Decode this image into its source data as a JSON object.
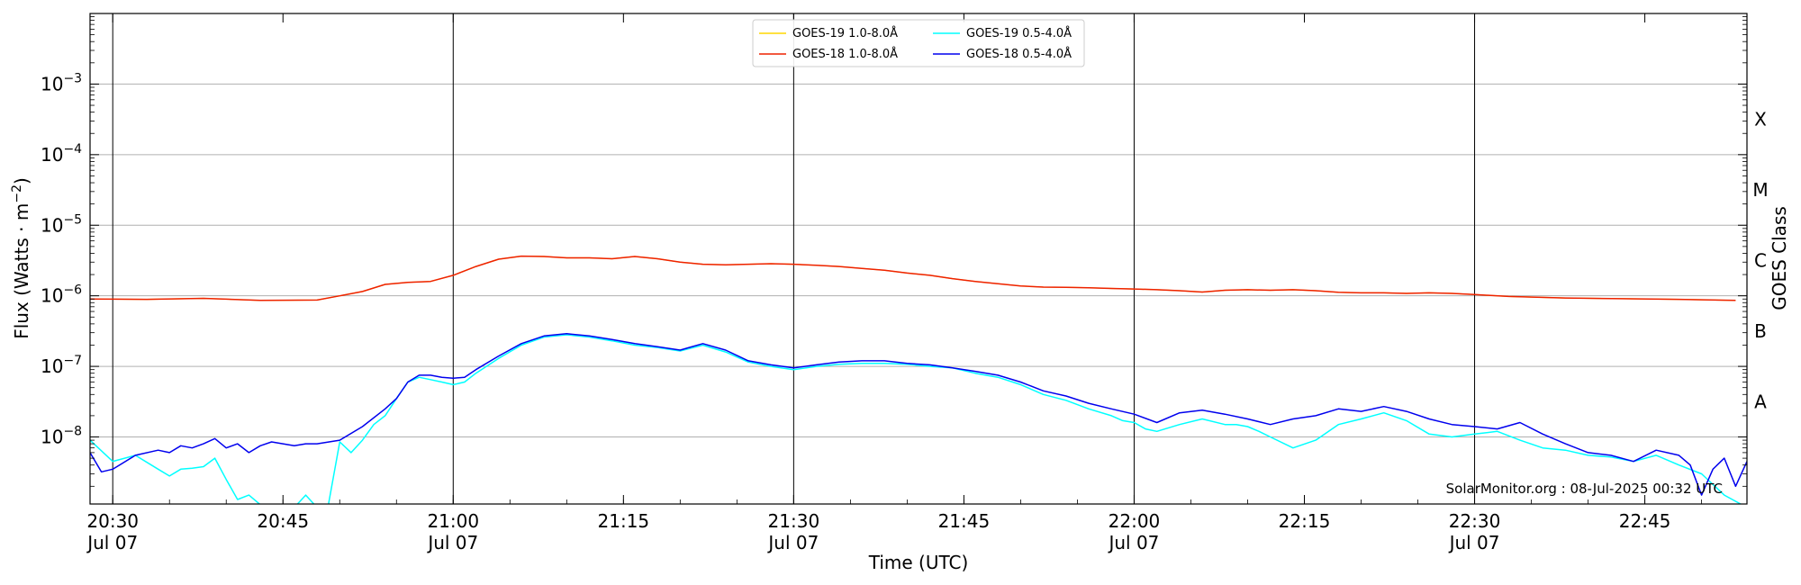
{
  "chart_data": {
    "type": "line",
    "xlabel": "Time (UTC)",
    "ylabel": "Flux (Watts · m",
    "ylabel_sup": "−2",
    "ylabel_close": ")",
    "right_label": "GOES Class",
    "ylim_log10": [
      -8.95,
      -2.0
    ],
    "x_range_min": [
      0,
      146
    ],
    "yticks": [
      {
        "exp": -3,
        "base": "10",
        "sup": "−3"
      },
      {
        "exp": -4,
        "base": "10",
        "sup": "−4"
      },
      {
        "exp": -5,
        "base": "10",
        "sup": "−5"
      },
      {
        "exp": -6,
        "base": "10",
        "sup": "−6"
      },
      {
        "exp": -7,
        "base": "10",
        "sup": "−7"
      },
      {
        "exp": -8,
        "base": "10",
        "sup": "−8"
      }
    ],
    "xticks": [
      {
        "min": 2,
        "label": "20:30",
        "sub": "Jul 07"
      },
      {
        "min": 17,
        "label": "20:45",
        "sub": ""
      },
      {
        "min": 32,
        "label": "21:00",
        "sub": "Jul 07"
      },
      {
        "min": 47,
        "label": "21:15",
        "sub": ""
      },
      {
        "min": 62,
        "label": "21:30",
        "sub": "Jul 07"
      },
      {
        "min": 77,
        "label": "21:45",
        "sub": ""
      },
      {
        "min": 92,
        "label": "22:00",
        "sub": "Jul 07"
      },
      {
        "min": 107,
        "label": "22:15",
        "sub": ""
      },
      {
        "min": 122,
        "label": "22:30",
        "sub": "Jul 07"
      },
      {
        "min": 137,
        "label": "22:45",
        "sub": ""
      }
    ],
    "day_lines_min": [
      2,
      32,
      62,
      92,
      122
    ],
    "goes_classes": [
      {
        "label": "X",
        "exp": -3.5
      },
      {
        "label": "M",
        "exp": -4.5
      },
      {
        "label": "C",
        "exp": -5.5
      },
      {
        "label": "B",
        "exp": -6.5
      },
      {
        "label": "A",
        "exp": -7.5
      }
    ],
    "series": [
      {
        "name": "GOES-19 1.0-8.0Å",
        "color": "#ffd700",
        "width": 1.2,
        "x": [
          0,
          5,
          10,
          15,
          20,
          22,
          24,
          26,
          28,
          30,
          32,
          34,
          36,
          38,
          40,
          42,
          44,
          46,
          48,
          50,
          52,
          54,
          56,
          58,
          60,
          62,
          64,
          66,
          68,
          70,
          72,
          74,
          76,
          78,
          80,
          82,
          84,
          86,
          88,
          90,
          92,
          94,
          96,
          98,
          100,
          102,
          104,
          106,
          108,
          110,
          112,
          114,
          116,
          118,
          120,
          122,
          125,
          130,
          135,
          140,
          145
        ],
        "y": [
          9e-07,
          8.9e-07,
          9.2e-07,
          8.6e-07,
          8.7e-07,
          1e-06,
          1.15e-06,
          1.45e-06,
          1.55e-06,
          1.6e-06,
          1.95e-06,
          2.6e-06,
          3.3e-06,
          3.65e-06,
          3.6e-06,
          3.45e-06,
          3.45e-06,
          3.35e-06,
          3.6e-06,
          3.35e-06,
          3e-06,
          2.8e-06,
          2.75e-06,
          2.8e-06,
          2.85e-06,
          2.8e-06,
          2.7e-06,
          2.6e-06,
          2.45e-06,
          2.3e-06,
          2.1e-06,
          1.95e-06,
          1.75e-06,
          1.6e-06,
          1.48e-06,
          1.38e-06,
          1.33e-06,
          1.32e-06,
          1.3e-06,
          1.27e-06,
          1.25e-06,
          1.22e-06,
          1.18e-06,
          1.13e-06,
          1.2e-06,
          1.22e-06,
          1.2e-06,
          1.22e-06,
          1.18e-06,
          1.12e-06,
          1.1e-06,
          1.1e-06,
          1.08e-06,
          1.1e-06,
          1.08e-06,
          1.04e-06,
          9.8e-07,
          9.3e-07,
          9.1e-07,
          8.9e-07,
          8.6e-07
        ]
      },
      {
        "name": "GOES-18 1.0-8.0Å",
        "color": "#ee2200",
        "width": 1.5,
        "x": [
          0,
          5,
          10,
          15,
          20,
          22,
          24,
          26,
          28,
          30,
          32,
          34,
          36,
          38,
          40,
          42,
          44,
          46,
          48,
          50,
          52,
          54,
          56,
          58,
          60,
          62,
          64,
          66,
          68,
          70,
          72,
          74,
          76,
          78,
          80,
          82,
          84,
          86,
          88,
          90,
          92,
          94,
          96,
          98,
          100,
          102,
          104,
          106,
          108,
          110,
          112,
          114,
          116,
          118,
          120,
          122,
          125,
          130,
          135,
          140,
          145
        ],
        "y": [
          9e-07,
          8.9e-07,
          9.2e-07,
          8.6e-07,
          8.7e-07,
          1e-06,
          1.15e-06,
          1.45e-06,
          1.55e-06,
          1.6e-06,
          1.95e-06,
          2.6e-06,
          3.3e-06,
          3.65e-06,
          3.6e-06,
          3.45e-06,
          3.45e-06,
          3.35e-06,
          3.6e-06,
          3.35e-06,
          3e-06,
          2.8e-06,
          2.75e-06,
          2.8e-06,
          2.85e-06,
          2.8e-06,
          2.7e-06,
          2.6e-06,
          2.45e-06,
          2.3e-06,
          2.1e-06,
          1.95e-06,
          1.75e-06,
          1.6e-06,
          1.48e-06,
          1.38e-06,
          1.33e-06,
          1.32e-06,
          1.3e-06,
          1.27e-06,
          1.25e-06,
          1.22e-06,
          1.18e-06,
          1.13e-06,
          1.2e-06,
          1.22e-06,
          1.2e-06,
          1.22e-06,
          1.18e-06,
          1.12e-06,
          1.1e-06,
          1.1e-06,
          1.08e-06,
          1.1e-06,
          1.08e-06,
          1.04e-06,
          9.8e-07,
          9.3e-07,
          9.1e-07,
          8.9e-07,
          8.6e-07
        ]
      },
      {
        "name": "GOES-19 0.5-4.0Å",
        "color": "#00ffff",
        "width": 1.5,
        "x": [
          0,
          2,
          4,
          6,
          7,
          8,
          9,
          10,
          11,
          12,
          13,
          14,
          15,
          16,
          17,
          18,
          19,
          20,
          21,
          22,
          23,
          24,
          25,
          26,
          27,
          28,
          29,
          30,
          31,
          32,
          33,
          34,
          36,
          38,
          40,
          42,
          44,
          46,
          48,
          50,
          52,
          54,
          56,
          58,
          60,
          62,
          64,
          66,
          68,
          70,
          72,
          74,
          76,
          78,
          80,
          82,
          84,
          86,
          88,
          90,
          91,
          92,
          93,
          94,
          96,
          98,
          100,
          101,
          102,
          103,
          104,
          106,
          108,
          110,
          112,
          114,
          116,
          118,
          120,
          122,
          124,
          126,
          128,
          130,
          132,
          134,
          136,
          138,
          140,
          142,
          144,
          146
        ],
        "y": [
          9e-09,
          4.5e-09,
          5.5e-09,
          3.5e-09,
          2.8e-09,
          3.5e-09,
          3.6e-09,
          3.8e-09,
          5e-09,
          2.5e-09,
          1.3e-09,
          1.5e-09,
          1.1e-09,
          1e-09,
          1e-09,
          1e-09,
          1.5e-09,
          1e-09,
          1.1e-09,
          8.5e-09,
          6e-09,
          9e-09,
          1.5e-08,
          2e-08,
          3.5e-08,
          6e-08,
          7e-08,
          6.5e-08,
          6e-08,
          5.5e-08,
          6e-08,
          8e-08,
          1.3e-07,
          2e-07,
          2.6e-07,
          2.8e-07,
          2.6e-07,
          2.3e-07,
          2e-07,
          1.85e-07,
          1.65e-07,
          2e-07,
          1.6e-07,
          1.15e-07,
          1e-07,
          9e-08,
          1e-07,
          1.07e-07,
          1.1e-07,
          1.1e-07,
          1.07e-07,
          1e-07,
          9.5e-08,
          8e-08,
          7e-08,
          5.5e-08,
          4e-08,
          3.3e-08,
          2.5e-08,
          2e-08,
          1.7e-08,
          1.6e-08,
          1.3e-08,
          1.2e-08,
          1.5e-08,
          1.8e-08,
          1.5e-08,
          1.5e-08,
          1.4e-08,
          1.2e-08,
          1e-08,
          7e-09,
          9e-09,
          1.5e-08,
          1.8e-08,
          2.2e-08,
          1.7e-08,
          1.1e-08,
          1e-08,
          1.1e-08,
          1.2e-08,
          9e-09,
          7e-09,
          6.5e-09,
          5.5e-09,
          5.2e-09,
          4.5e-09,
          5.5e-09,
          4e-09,
          3e-09,
          1.5e-09,
          1e-09
        ]
      },
      {
        "name": "GOES-18 0.5-4.0Å",
        "color": "#0000ee",
        "width": 1.5,
        "x": [
          0,
          1,
          2,
          4,
          6,
          7,
          8,
          9,
          10,
          11,
          12,
          13,
          14,
          15,
          16,
          17,
          18,
          19,
          20,
          22,
          24,
          26,
          27,
          28,
          29,
          30,
          31,
          32,
          33,
          34,
          36,
          38,
          40,
          42,
          44,
          46,
          48,
          50,
          52,
          54,
          56,
          58,
          60,
          62,
          64,
          66,
          68,
          70,
          72,
          74,
          76,
          78,
          80,
          82,
          84,
          86,
          88,
          90,
          92,
          94,
          96,
          98,
          100,
          102,
          104,
          106,
          108,
          110,
          112,
          114,
          116,
          118,
          120,
          122,
          124,
          126,
          128,
          130,
          132,
          134,
          136,
          138,
          140,
          141,
          142,
          143,
          144,
          145,
          146
        ],
        "y": [
          6e-09,
          3.2e-09,
          3.5e-09,
          5.5e-09,
          6.5e-09,
          6e-09,
          7.5e-09,
          7e-09,
          8e-09,
          9.5e-09,
          7e-09,
          8e-09,
          6e-09,
          7.5e-09,
          8.5e-09,
          8e-09,
          7.5e-09,
          8e-09,
          8e-09,
          9e-09,
          1.4e-08,
          2.5e-08,
          3.5e-08,
          6e-08,
          7.5e-08,
          7.5e-08,
          7e-08,
          6.8e-08,
          7e-08,
          9e-08,
          1.4e-07,
          2.1e-07,
          2.7e-07,
          2.9e-07,
          2.7e-07,
          2.4e-07,
          2.1e-07,
          1.9e-07,
          1.7e-07,
          2.1e-07,
          1.7e-07,
          1.2e-07,
          1.05e-07,
          9.5e-08,
          1.05e-07,
          1.15e-07,
          1.2e-07,
          1.2e-07,
          1.1e-07,
          1.05e-07,
          9.5e-08,
          8.5e-08,
          7.5e-08,
          6e-08,
          4.5e-08,
          3.8e-08,
          3e-08,
          2.5e-08,
          2.1e-08,
          1.6e-08,
          2.2e-08,
          2.4e-08,
          2.1e-08,
          1.8e-08,
          1.5e-08,
          1.8e-08,
          2e-08,
          2.5e-08,
          2.3e-08,
          2.7e-08,
          2.3e-08,
          1.8e-08,
          1.5e-08,
          1.4e-08,
          1.3e-08,
          1.6e-08,
          1.1e-08,
          8e-09,
          6e-09,
          5.5e-09,
          4.5e-09,
          6.5e-09,
          5.5e-09,
          4e-09,
          1.5e-09,
          3.5e-09,
          5e-09,
          2e-09,
          4.5e-09
        ]
      }
    ]
  },
  "credit": "SolarMonitor.org : 08-Jul-2025 00:32 UTC"
}
